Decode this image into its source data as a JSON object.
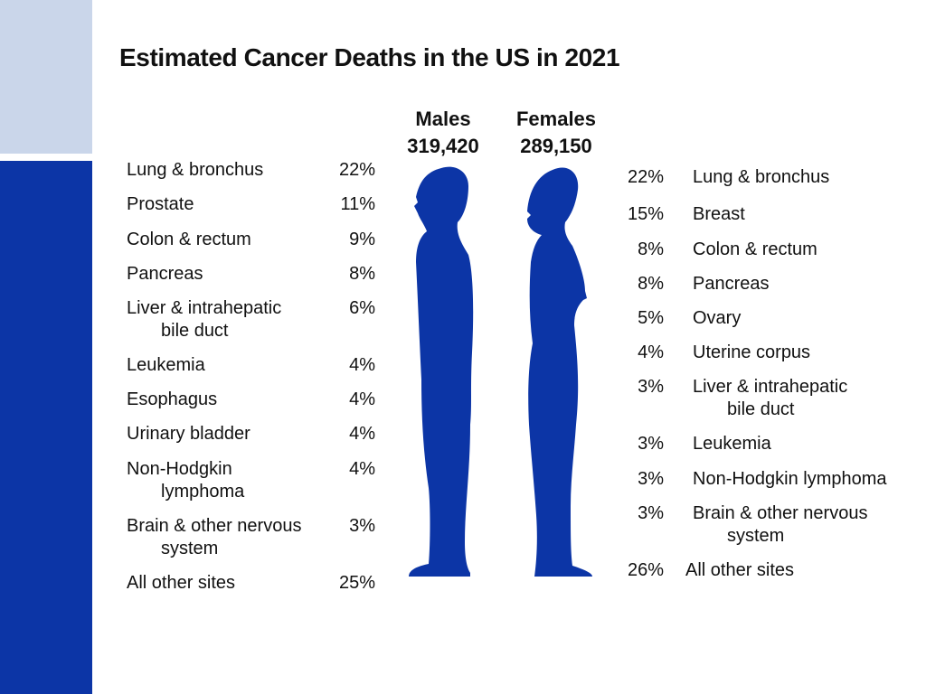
{
  "slide": {
    "title": "Estimated Cancer Deaths in the US in 2021",
    "colors": {
      "accent_dark": "#0c35a6",
      "accent_light": "#cad6ea",
      "figure_fill": "#0c35a6"
    }
  },
  "chart_data": [
    {
      "type": "table",
      "group": "Males",
      "total": "319,420",
      "categories": [
        "Lung & bronchus",
        "Prostate",
        "Colon & rectum",
        "Pancreas",
        "Liver & intrahepatic bile duct",
        "Leukemia",
        "Esophagus",
        "Urinary bladder",
        "Non-Hodgkin lymphoma",
        "Brain & other nervous system",
        "All other sites"
      ],
      "values": [
        "22%",
        "11%",
        "9%",
        "8%",
        "6%",
        "4%",
        "4%",
        "4%",
        "4%",
        "3%",
        "25%"
      ],
      "site_lines": [
        [
          "Lung & bronchus"
        ],
        [
          "Prostate"
        ],
        [
          "Colon & rectum"
        ],
        [
          "Pancreas"
        ],
        [
          "Liver & intrahepatic",
          "bile duct"
        ],
        [
          "Leukemia"
        ],
        [
          "Esophagus"
        ],
        [
          "Urinary bladder"
        ],
        [
          "Non-Hodgkin",
          "lymphoma"
        ],
        [
          "Brain & other nervous",
          "system"
        ],
        [
          "All other sites"
        ]
      ]
    },
    {
      "type": "table",
      "group": "Females",
      "total": "289,150",
      "categories": [
        "Lung & bronchus",
        "Breast",
        "Colon & rectum",
        "Pancreas",
        "Ovary",
        "Uterine corpus",
        "Liver & intrahepatic bile duct",
        "Leukemia",
        "Non-Hodgkin lymphoma",
        "Brain & other nervous system",
        "All other sites"
      ],
      "values": [
        "22%",
        "15%",
        "8%",
        "8%",
        "5%",
        "4%",
        "3%",
        "3%",
        "3%",
        "3%",
        "26%"
      ],
      "site_lines": [
        [
          "Lung & bronchus"
        ],
        [
          "Breast"
        ],
        [
          "Colon & rectum"
        ],
        [
          "Pancreas"
        ],
        [
          "Ovary"
        ],
        [
          "Uterine corpus"
        ],
        [
          "Liver & intrahepatic",
          "bile duct"
        ],
        [
          "Leukemia"
        ],
        [
          "Non-Hodgkin  lymphoma"
        ],
        [
          "Brain & other nervous",
          "system"
        ],
        [
          "All other sites"
        ]
      ]
    }
  ]
}
